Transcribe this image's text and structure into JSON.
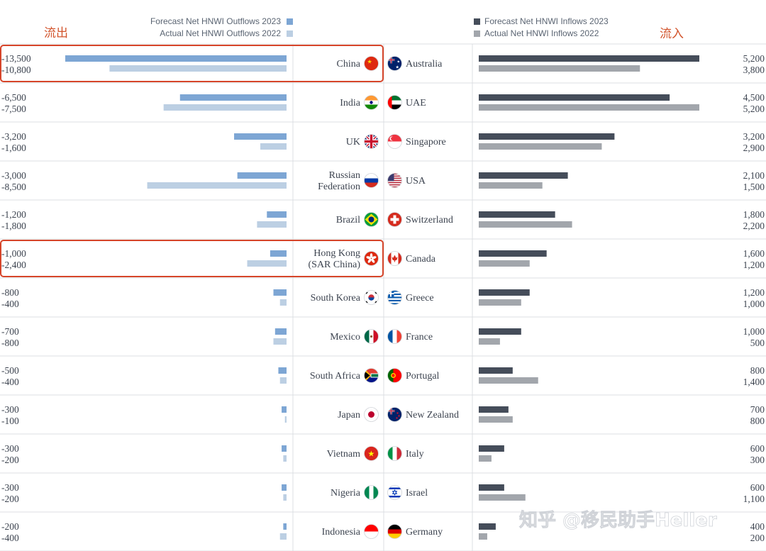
{
  "labels": {
    "outflow_cn": "流出",
    "inflow_cn": "流入"
  },
  "watermark": "知乎 @移民助手Heller",
  "colors": {
    "out_forecast": "#7da6d4",
    "out_actual": "#bccfe3",
    "in_forecast": "#454d5a",
    "in_actual": "#a2a6ac",
    "highlight": "#d6452a",
    "grid": "#dcdfe3"
  },
  "chart_data": {
    "type": "bar",
    "title": "",
    "outflows": {
      "legend": [
        {
          "name": "Forecast Net HNWI Outflows 2023",
          "color": "#7da6d4"
        },
        {
          "name": "Actual Net HNWI Outflows 2022",
          "color": "#bccfe3"
        }
      ],
      "xlim": [
        -14000,
        0
      ],
      "rows": [
        {
          "country": "China",
          "forecast_2023": -13500,
          "actual_2022": -10800,
          "forecast_label": "-13,500",
          "actual_label": "-10,800",
          "highlighted": true,
          "flag": "china-flag-icon"
        },
        {
          "country": "India",
          "forecast_2023": -6500,
          "actual_2022": -7500,
          "forecast_label": "-6,500",
          "actual_label": "-7,500",
          "highlighted": false,
          "flag": "india-flag-icon"
        },
        {
          "country": "UK",
          "forecast_2023": -3200,
          "actual_2022": -1600,
          "forecast_label": "-3,200",
          "actual_label": "-1,600",
          "highlighted": false,
          "flag": "uk-flag-icon"
        },
        {
          "country": "Russian Federation",
          "country_lines": [
            "Russian",
            "Federation"
          ],
          "forecast_2023": -3000,
          "actual_2022": -8500,
          "forecast_label": "-3,000",
          "actual_label": "-8,500",
          "highlighted": false,
          "flag": "russia-flag-icon"
        },
        {
          "country": "Brazil",
          "forecast_2023": -1200,
          "actual_2022": -1800,
          "forecast_label": "-1,200",
          "actual_label": "-1,800",
          "highlighted": false,
          "flag": "brazil-flag-icon"
        },
        {
          "country": "Hong Kong (SAR China)",
          "country_lines": [
            "Hong Kong",
            "(SAR China)"
          ],
          "forecast_2023": -1000,
          "actual_2022": -2400,
          "forecast_label": "-1,000",
          "actual_label": "-2,400",
          "highlighted": true,
          "flag": "hong-kong-flag-icon"
        },
        {
          "country": "South Korea",
          "forecast_2023": -800,
          "actual_2022": -400,
          "forecast_label": "-800",
          "actual_label": "-400",
          "highlighted": false,
          "flag": "south-korea-flag-icon"
        },
        {
          "country": "Mexico",
          "forecast_2023": -700,
          "actual_2022": -800,
          "forecast_label": "-700",
          "actual_label": "-800",
          "highlighted": false,
          "flag": "mexico-flag-icon"
        },
        {
          "country": "South Africa",
          "forecast_2023": -500,
          "actual_2022": -400,
          "forecast_label": "-500",
          "actual_label": "-400",
          "highlighted": false,
          "flag": "south-africa-flag-icon"
        },
        {
          "country": "Japan",
          "forecast_2023": -300,
          "actual_2022": -100,
          "forecast_label": "-300",
          "actual_label": "-100",
          "highlighted": false,
          "flag": "japan-flag-icon"
        },
        {
          "country": "Vietnam",
          "forecast_2023": -300,
          "actual_2022": -200,
          "forecast_label": "-300",
          "actual_label": "-200",
          "highlighted": false,
          "flag": "vietnam-flag-icon"
        },
        {
          "country": "Nigeria",
          "forecast_2023": -300,
          "actual_2022": -200,
          "forecast_label": "-300",
          "actual_label": "-200",
          "highlighted": false,
          "flag": "nigeria-flag-icon"
        },
        {
          "country": "Indonesia",
          "forecast_2023": -200,
          "actual_2022": -400,
          "forecast_label": "-200",
          "actual_label": "-400",
          "highlighted": false,
          "flag": "indonesia-flag-icon"
        }
      ]
    },
    "inflows": {
      "legend": [
        {
          "name": "Forecast Net HNWI Inflows 2023",
          "color": "#454d5a"
        },
        {
          "name": "Actual Net HNWI Inflows 2022",
          "color": "#a2a6ac"
        }
      ],
      "xlim": [
        0,
        5200
      ],
      "rows": [
        {
          "country": "Australia",
          "forecast_2023": 5200,
          "actual_2022": 3800,
          "forecast_label": "5,200",
          "actual_label": "3,800",
          "flag": "australia-flag-icon"
        },
        {
          "country": "UAE",
          "forecast_2023": 4500,
          "actual_2022": 5200,
          "forecast_label": "4,500",
          "actual_label": "5,200",
          "flag": "uae-flag-icon"
        },
        {
          "country": "Singapore",
          "forecast_2023": 3200,
          "actual_2022": 2900,
          "forecast_label": "3,200",
          "actual_label": "2,900",
          "flag": "singapore-flag-icon"
        },
        {
          "country": "USA",
          "forecast_2023": 2100,
          "actual_2022": 1500,
          "forecast_label": "2,100",
          "actual_label": "1,500",
          "flag": "usa-flag-icon"
        },
        {
          "country": "Switzerland",
          "forecast_2023": 1800,
          "actual_2022": 2200,
          "forecast_label": "1,800",
          "actual_label": "2,200",
          "flag": "switzerland-flag-icon"
        },
        {
          "country": "Canada",
          "forecast_2023": 1600,
          "actual_2022": 1200,
          "forecast_label": "1,600",
          "actual_label": "1,200",
          "flag": "canada-flag-icon"
        },
        {
          "country": "Greece",
          "forecast_2023": 1200,
          "actual_2022": 1000,
          "forecast_label": "1,200",
          "actual_label": "1,000",
          "flag": "greece-flag-icon"
        },
        {
          "country": "France",
          "forecast_2023": 1000,
          "actual_2022": 500,
          "forecast_label": "1,000",
          "actual_label": "500",
          "flag": "france-flag-icon"
        },
        {
          "country": "Portugal",
          "forecast_2023": 800,
          "actual_2022": 1400,
          "forecast_label": "800",
          "actual_label": "1,400",
          "flag": "portugal-flag-icon"
        },
        {
          "country": "New Zealand",
          "forecast_2023": 700,
          "actual_2022": 800,
          "forecast_label": "700",
          "actual_label": "800",
          "flag": "new-zealand-flag-icon"
        },
        {
          "country": "Italy",
          "forecast_2023": 600,
          "actual_2022": 300,
          "forecast_label": "600",
          "actual_label": "300",
          "flag": "italy-flag-icon"
        },
        {
          "country": "Israel",
          "forecast_2023": 600,
          "actual_2022": 1100,
          "forecast_label": "600",
          "actual_label": "1,100",
          "flag": "israel-flag-icon"
        },
        {
          "country": "Germany",
          "forecast_2023": 400,
          "actual_2022": 200,
          "forecast_label": "400",
          "actual_label": "200",
          "flag": "germany-flag-icon"
        }
      ]
    }
  }
}
